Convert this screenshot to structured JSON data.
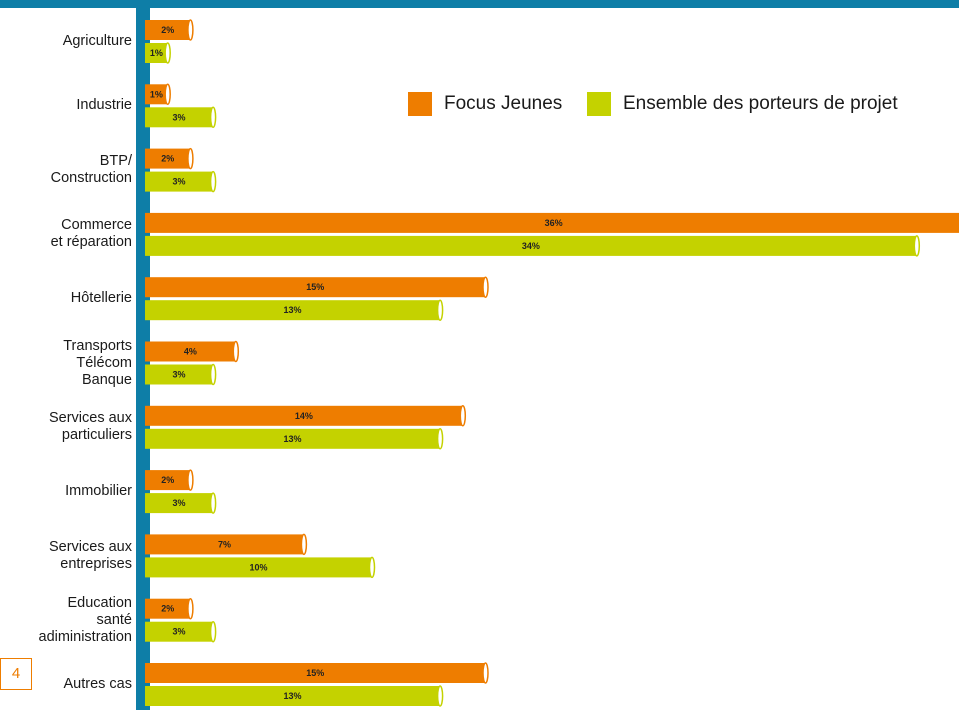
{
  "colors": {
    "focus": "#ee7d00",
    "ensemble": "#c4d200",
    "axis": "#0e7ea7",
    "band": "#0e7ea7"
  },
  "legend": [
    {
      "label": "Focus Jeunes",
      "color": "#ee7d00"
    },
    {
      "label": "Ensemble des porteurs de projet",
      "color": "#c4d200"
    }
  ],
  "page": {
    "number": "4"
  },
  "chart_data": {
    "type": "bar",
    "orientation": "horizontal",
    "categories": [
      "Agriculture",
      "Industrie",
      "BTP/\nConstruction",
      "Commerce\net réparation",
      "Hôtellerie",
      "Transports\nTélécom\nBanque",
      "Services aux\nparticuliers",
      "Immobilier",
      "Services aux\nentreprises",
      "Education\nsanté\nadiministration",
      "Autres cas"
    ],
    "series": [
      {
        "name": "Focus Jeunes",
        "values": [
          2,
          1,
          2,
          36,
          15,
          4,
          14,
          2,
          7,
          2,
          15
        ],
        "labels": [
          "2%",
          "1%",
          "2%",
          "36%",
          "15%",
          "4%",
          "14%",
          "2%",
          "7%",
          "2%",
          "15%"
        ]
      },
      {
        "name": "Ensemble des porteurs de projet",
        "values": [
          1,
          3,
          3,
          34,
          13,
          3,
          13,
          3,
          10,
          3,
          13
        ],
        "labels": [
          "1%",
          "3%",
          "3%",
          "34%",
          "13%",
          "3%",
          "13%",
          "3%",
          "10%",
          "3%",
          "13%"
        ]
      }
    ],
    "value_unit": "%",
    "legend_position": "top-right",
    "grid": false
  }
}
